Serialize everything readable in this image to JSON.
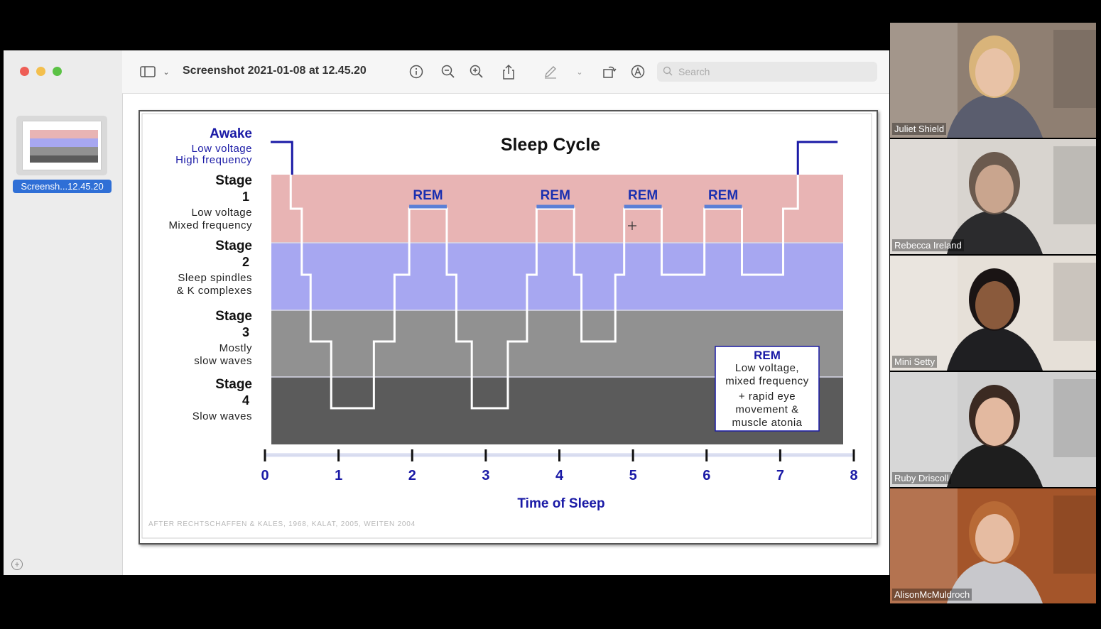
{
  "window": {
    "title": "Screenshot 2021-01-08 at 12.45.20",
    "search_placeholder": "Search",
    "thumbnail_label": "Screensh...12.45.20"
  },
  "toolbar_icons": [
    "sidebar-toggle-icon",
    "chevron-down-icon",
    "info-icon",
    "zoom-out-icon",
    "zoom-in-icon",
    "share-icon",
    "markup-pen-icon",
    "chevron-down-icon",
    "rotate-icon",
    "annotate-icon",
    "search-icon"
  ],
  "chart_data": {
    "type": "line",
    "title": "Sleep Cycle",
    "xlabel": "Time of Sleep",
    "x_ticks": [
      "0",
      "1",
      "2",
      "3",
      "4",
      "5",
      "6",
      "7",
      "8"
    ],
    "xlim": [
      0,
      8
    ],
    "stages": [
      {
        "name": "Awake",
        "desc": [
          "Low voltage",
          "High frequency"
        ],
        "color": "#ffffff"
      },
      {
        "name": "Stage",
        "num": "1",
        "desc": [
          "Low voltage",
          "Mixed frequency"
        ],
        "color": "#e8b4b4"
      },
      {
        "name": "Stage",
        "num": "2",
        "desc": [
          "Sleep spindles",
          "& K complexes"
        ],
        "color": "#a7a7f1"
      },
      {
        "name": "Stage",
        "num": "3",
        "desc": [
          "Mostly",
          "slow waves"
        ],
        "color": "#919191"
      },
      {
        "name": "Stage",
        "num": "4",
        "desc": [
          "Slow waves"
        ],
        "color": "#5b5b5b"
      }
    ],
    "rem_labels": [
      "REM",
      "REM",
      "REM",
      "REM"
    ],
    "rem_periods": [
      [
        1.96,
        2.47
      ],
      [
        3.69,
        4.2
      ],
      [
        4.88,
        5.39
      ],
      [
        5.97,
        6.48
      ]
    ],
    "hypnogram": [
      [
        0,
        0
      ],
      [
        0.35,
        0
      ],
      [
        0.35,
        1
      ],
      [
        0.5,
        1
      ],
      [
        0.5,
        2
      ],
      [
        0.62,
        2
      ],
      [
        0.62,
        3
      ],
      [
        0.9,
        3
      ],
      [
        0.9,
        4
      ],
      [
        1.48,
        4
      ],
      [
        1.48,
        3
      ],
      [
        1.76,
        3
      ],
      [
        1.76,
        2
      ],
      [
        1.96,
        2
      ],
      [
        1.96,
        1
      ],
      [
        2.47,
        1
      ],
      [
        2.47,
        2
      ],
      [
        2.6,
        2
      ],
      [
        2.6,
        3
      ],
      [
        2.81,
        3
      ],
      [
        2.81,
        4
      ],
      [
        3.3,
        4
      ],
      [
        3.3,
        3
      ],
      [
        3.56,
        3
      ],
      [
        3.56,
        2
      ],
      [
        3.69,
        2
      ],
      [
        3.69,
        1
      ],
      [
        4.2,
        1
      ],
      [
        4.2,
        2
      ],
      [
        4.3,
        2
      ],
      [
        4.3,
        3
      ],
      [
        4.76,
        3
      ],
      [
        4.76,
        2
      ],
      [
        4.88,
        2
      ],
      [
        4.88,
        1
      ],
      [
        5.39,
        1
      ],
      [
        5.39,
        2
      ],
      [
        5.97,
        2
      ],
      [
        5.97,
        1
      ],
      [
        6.48,
        1
      ],
      [
        6.48,
        2
      ],
      [
        7.04,
        2
      ],
      [
        7.04,
        1
      ],
      [
        7.24,
        1
      ],
      [
        7.24,
        0
      ],
      [
        7.78,
        0
      ]
    ],
    "legend_box": {
      "title": "REM",
      "lines": [
        "Low voltage,",
        "mixed frequency",
        "+ rapid eye",
        "movement &",
        "muscle atonia"
      ]
    },
    "source": "AFTER RECHTSCHAFFEN & KALES, 1968, KALAT, 2005, WEITEN 2004",
    "colors": {
      "stage_line": "#ffffff",
      "awake_line": "#1a1aa6",
      "labels_blue": "#1a1aa6",
      "rem_bar": "#5b7fd6"
    }
  },
  "participants": [
    {
      "name": "Juliet Shield",
      "bg": "#8f7f72",
      "face": "#e8c2a6",
      "body": "#5a5d6e",
      "hair": "#d9b47a"
    },
    {
      "name": "Rebecca Ireland",
      "bg": "#d8d4cf",
      "face": "#c9a58e",
      "body": "#2b2b2d",
      "hair": "#6b5a4e"
    },
    {
      "name": "Mini Setty",
      "bg": "#e6e0d8",
      "face": "#8a5a3c",
      "body": "#1f1f22",
      "hair": "#1a1414"
    },
    {
      "name": "Ruby Driscoll",
      "bg": "#cfcfcf",
      "face": "#e3b9a0",
      "body": "#1e1e1e",
      "hair": "#3b2a22"
    },
    {
      "name": "AlisonMcMuldroch",
      "bg": "#a4552a",
      "face": "#e6bca2",
      "body": "#c8c8cc",
      "hair": "#b86a36"
    }
  ]
}
